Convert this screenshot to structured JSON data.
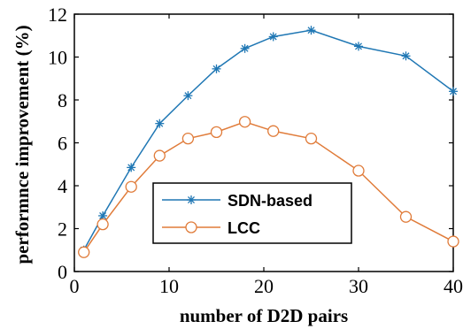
{
  "chart_data": {
    "type": "line",
    "xlabel": "number of D2D pairs",
    "ylabel": "performnce improvement (%)",
    "xlim": [
      0,
      40
    ],
    "ylim": [
      0,
      12
    ],
    "xticks": [
      0,
      10,
      20,
      30,
      40
    ],
    "yticks": [
      0,
      2,
      4,
      6,
      8,
      10,
      12
    ],
    "grid": false,
    "legend_position": "lower-center",
    "series": [
      {
        "name": "SDN-based",
        "marker": "asterisk",
        "color": "#1f77b4",
        "x": [
          1,
          3,
          6,
          9,
          12,
          15,
          18,
          21,
          25,
          30,
          35,
          40
        ],
        "y": [
          1.0,
          2.6,
          4.85,
          6.9,
          8.2,
          9.45,
          10.4,
          10.95,
          11.25,
          10.5,
          10.05,
          8.4
        ]
      },
      {
        "name": "LCC",
        "marker": "circle",
        "color": "#e07b39",
        "x": [
          1,
          3,
          6,
          9,
          12,
          15,
          18,
          21,
          25,
          30,
          35,
          40
        ],
        "y": [
          0.9,
          2.2,
          3.95,
          5.4,
          6.2,
          6.5,
          6.98,
          6.55,
          6.2,
          4.7,
          2.55,
          1.4
        ]
      }
    ]
  }
}
